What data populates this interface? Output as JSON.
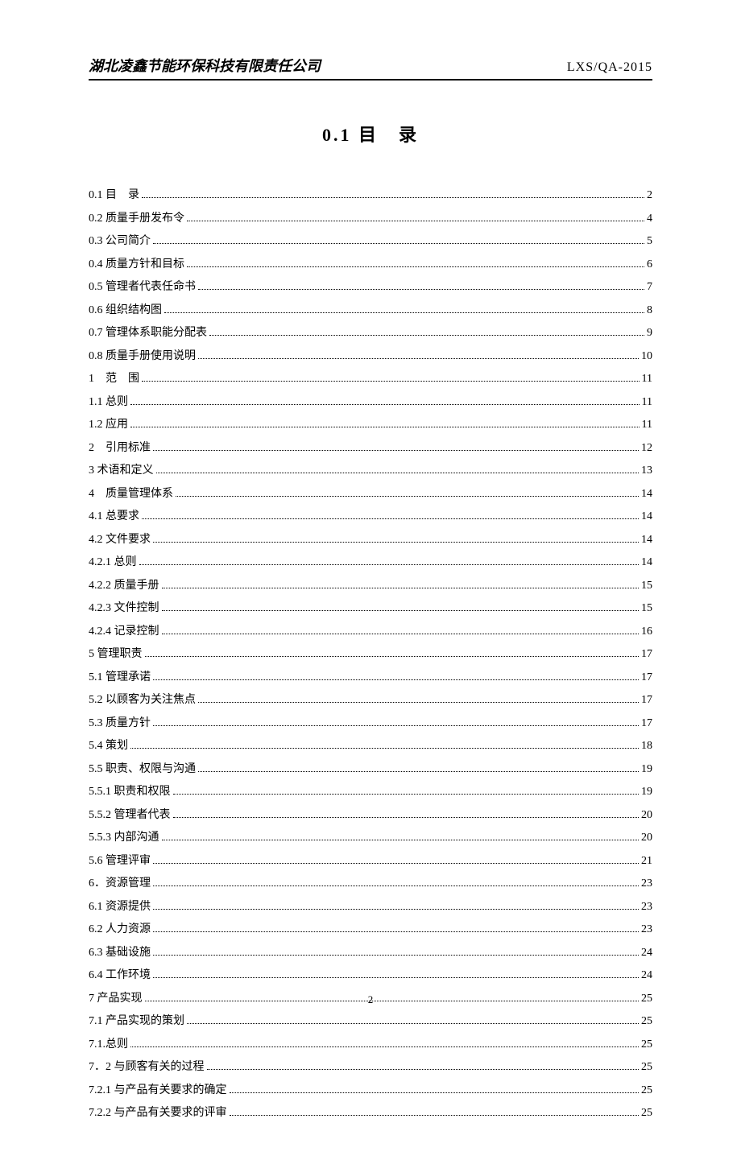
{
  "header": {
    "company_name": "湖北凌鑫节能环保科技有限责任公司",
    "doc_code": "LXS/QA-2015"
  },
  "title": "0.1 目　录",
  "page_number": "2",
  "toc_entries": [
    {
      "label": "0.1 目　录",
      "page": "2"
    },
    {
      "label": "0.2 质量手册发布令",
      "page": "4"
    },
    {
      "label": "0.3  公司简介",
      "page": "5"
    },
    {
      "label": "0.4  质量方针和目标",
      "page": "6"
    },
    {
      "label": "0.5  管理者代表任命书",
      "page": "7"
    },
    {
      "label": "0.6 组织结构图",
      "page": "8"
    },
    {
      "label": "0.7 管理体系职能分配表",
      "page": "9"
    },
    {
      "label": "0.8  质量手册使用说明",
      "page": "10"
    },
    {
      "label": "1　范　围",
      "page": "11"
    },
    {
      "label": "1.1  总则",
      "page": "11"
    },
    {
      "label": "1.2  应用",
      "page": "11"
    },
    {
      "label": "2　引用标准",
      "page": "12"
    },
    {
      "label": "3 术语和定义",
      "page": "13"
    },
    {
      "label": "4　质量管理体系",
      "page": "14"
    },
    {
      "label": "4.1  总要求",
      "page": "14"
    },
    {
      "label": "4.2  文件要求",
      "page": "14"
    },
    {
      "label": "4.2.1 总则",
      "page": "14"
    },
    {
      "label": "4.2.2 质量手册",
      "page": "15"
    },
    {
      "label": "4.2.3 文件控制",
      "page": "15"
    },
    {
      "label": "4.2.4 记录控制",
      "page": "16"
    },
    {
      "label": "5  管理职责",
      "page": "17"
    },
    {
      "label": "5.1  管理承诺",
      "page": "17"
    },
    {
      "label": "5.2  以顾客为关注焦点",
      "page": "17"
    },
    {
      "label": "5.3  质量方针",
      "page": "17"
    },
    {
      "label": "5.4  策划",
      "page": "18"
    },
    {
      "label": "5.5  职责、权限与沟通",
      "page": "19"
    },
    {
      "label": "5.5.1 职责和权限",
      "page": "19"
    },
    {
      "label": "5.5.2  管理者代表",
      "page": "20"
    },
    {
      "label": "5.5.3 内部沟通",
      "page": "20"
    },
    {
      "label": "5.6  管理评审",
      "page": "21"
    },
    {
      "label": "6．资源管理",
      "page": "23"
    },
    {
      "label": "6.1 资源提供",
      "page": "23"
    },
    {
      "label": "6.2 人力资源",
      "page": "23"
    },
    {
      "label": "6.3 基础设施",
      "page": "24"
    },
    {
      "label": "6.4 工作环境",
      "page": "24"
    },
    {
      "label": "7 产品实现",
      "page": "25"
    },
    {
      "label": "7.1  产品实现的策划",
      "page": "25"
    },
    {
      "label": "7.1.总则",
      "page": "25"
    },
    {
      "label": "7．2 与顾客有关的过程",
      "page": "25"
    },
    {
      "label": "7.2.1 与产品有关要求的确定",
      "page": "25"
    },
    {
      "label": "7.2.2 与产品有关要求的评审",
      "page": "25"
    }
  ]
}
